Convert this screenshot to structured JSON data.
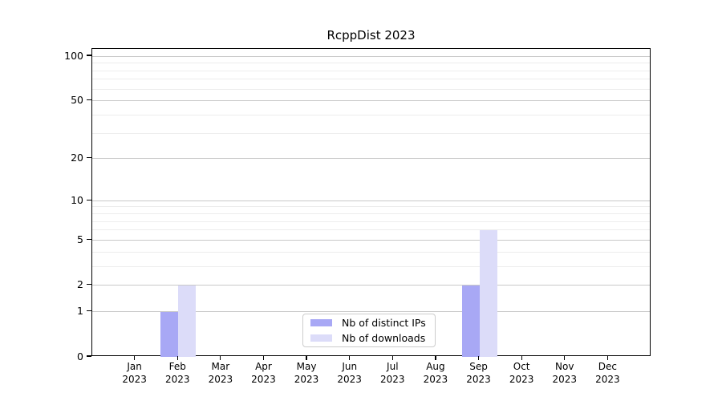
{
  "title": "RcppDist 2023",
  "chart_data": {
    "type": "bar",
    "title": "RcppDist 2023",
    "categories": [
      "Jan",
      "Feb",
      "Mar",
      "Apr",
      "May",
      "Jun",
      "Jul",
      "Aug",
      "Sep",
      "Oct",
      "Nov",
      "Dec"
    ],
    "x_year_line": "2023",
    "series": [
      {
        "name": "Nb of distinct IPs",
        "color": "#a8a8f5",
        "values": [
          0,
          1,
          0,
          0,
          0,
          0,
          0,
          0,
          2,
          0,
          0,
          0
        ]
      },
      {
        "name": "Nb of downloads",
        "color": "#dcdcf9",
        "values": [
          0,
          2,
          0,
          0,
          0,
          0,
          0,
          0,
          6,
          0,
          0,
          0
        ]
      }
    ],
    "yscale": "log1p",
    "yticks": [
      0,
      1,
      2,
      5,
      10,
      20,
      50,
      100
    ],
    "yticks_minor": [
      3,
      4,
      6,
      7,
      8,
      9,
      30,
      40,
      60,
      70,
      80,
      90
    ],
    "ylim": [
      0,
      112
    ],
    "grid": true,
    "legend_position": "lower center",
    "colors": {
      "frame": "#000000",
      "grid_major": "#c9c9c9",
      "grid_minor": "#ededed",
      "legend_border": "#cccccc",
      "text": "#000000",
      "background": "#ffffff"
    }
  }
}
